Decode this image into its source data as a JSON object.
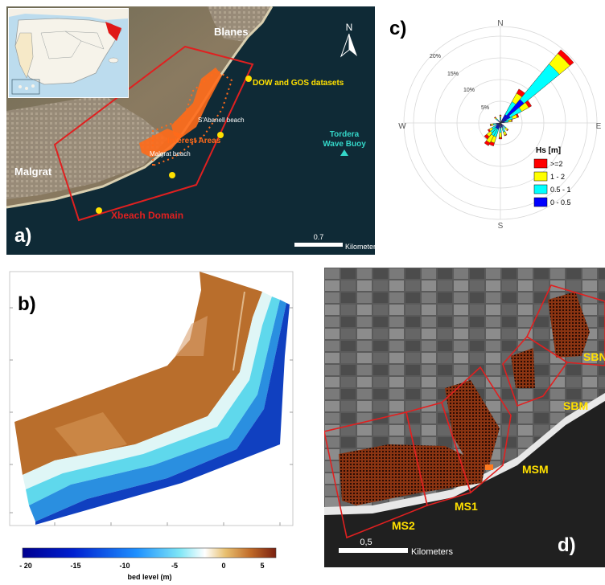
{
  "panel_a": {
    "label": "a)",
    "places": {
      "blanes": "Blanes",
      "malgrat": "Malgrat"
    },
    "datasets": "DOW and GOS datasets",
    "sabanell": "S'Abanell beach",
    "interest": "Interest Areas",
    "malgrat_beach": "Malgrat beach",
    "buoy_line1": "Tordera",
    "buoy_line2": "Wave Buoy",
    "domain": "Xbeach Domain",
    "north": "N",
    "scale_value": "0.7",
    "scale_unit": "Kilometers",
    "colors": {
      "domain": "#e02020",
      "interest": "#ff6a1a",
      "dataset_point": "#ffe000",
      "buoy": "#34d6c8",
      "sea": "#0f2a36"
    }
  },
  "panel_c": {
    "label": "c)",
    "directions": {
      "n": "N",
      "e": "E",
      "s": "S",
      "w": "W"
    },
    "rings": [
      "5%",
      "10%",
      "15%",
      "20%"
    ],
    "legend_title": "Hs [m]",
    "legend": [
      {
        "label": ">=2",
        "color": "#ff0000"
      },
      {
        "label": "1 - 2",
        "color": "#ffff00"
      },
      {
        "label": "0.5 - 1",
        "color": "#00ffff"
      },
      {
        "label": "0 - 0.5",
        "color": "#0000ff"
      }
    ]
  },
  "panel_b": {
    "label": "b)",
    "colorbar_ticks": [
      "- 20",
      "-15",
      "-10",
      "-5",
      "0",
      "5"
    ],
    "colorbar_label": "bed level (m)"
  },
  "panel_d": {
    "label": "d)",
    "areas": {
      "ms2": "MS2",
      "ms1": "MS1",
      "msm": "MSM",
      "sbm": "SBM",
      "sbn": "SBN"
    },
    "scale_value": "0,5",
    "scale_unit": "Kilometers"
  }
}
